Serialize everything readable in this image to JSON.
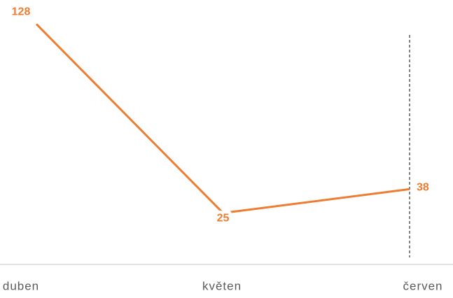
{
  "chart_data": {
    "type": "line",
    "categories": [
      "duben",
      "květen",
      "červen"
    ],
    "series": [
      {
        "color": "#ed7d31",
        "values": [
          128,
          25,
          38
        ]
      }
    ],
    "ylim": [
      0,
      140
    ]
  }
}
